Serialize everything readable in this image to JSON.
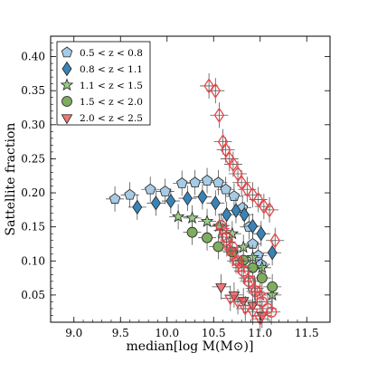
{
  "chart_data": {
    "type": "scatter",
    "xlabel": "median[log M(M⊙)]",
    "ylabel": "Sattellite fraction",
    "xlim": [
      8.75,
      11.75
    ],
    "ylim": [
      0.01,
      0.43
    ],
    "x_ticks": [
      "9.0",
      "9.5",
      "10.0",
      "10.5",
      "11.0",
      "11.5"
    ],
    "y_ticks": [
      "0.05",
      "0.10",
      "0.15",
      "0.20",
      "0.25",
      "0.30",
      "0.35",
      "0.40"
    ],
    "legend_position": "top-left",
    "series": [
      {
        "name": "0.5 < z < 0.8",
        "marker": "pentagon",
        "color": "#a6cbe6",
        "x": [
          9.44,
          9.6,
          9.82,
          9.98,
          10.16,
          10.3,
          10.43,
          10.55,
          10.63,
          10.72,
          10.81,
          10.88,
          10.92,
          10.98,
          11.01
        ],
        "y": [
          0.191,
          0.197,
          0.205,
          0.202,
          0.214,
          0.215,
          0.218,
          0.215,
          0.205,
          0.195,
          0.178,
          0.15,
          0.125,
          0.108,
          0.095
        ]
      },
      {
        "name": "0.8 < z < 1.1",
        "marker": "diamond",
        "color": "#3a83b6",
        "x": [
          9.68,
          9.88,
          10.04,
          10.22,
          10.38,
          10.52,
          10.64,
          10.74,
          10.83,
          10.92,
          11.01,
          11.13
        ],
        "y": [
          0.179,
          0.185,
          0.188,
          0.192,
          0.194,
          0.185,
          0.168,
          0.174,
          0.168,
          0.151,
          0.14,
          0.112
        ]
      },
      {
        "name": "1.1 < z < 1.5",
        "marker": "star",
        "color": "#9acd87",
        "x": [
          10.12,
          10.27,
          10.43,
          10.56,
          10.7,
          10.82,
          10.92,
          11.02,
          11.13
        ],
        "y": [
          0.165,
          0.163,
          0.158,
          0.151,
          0.14,
          0.12,
          0.105,
          0.09,
          0.05
        ]
      },
      {
        "name": "1.5 < z < 2.0",
        "marker": "circle",
        "color": "#7fac5e",
        "x": [
          10.27,
          10.43,
          10.55,
          10.7,
          10.82,
          10.92,
          11.02,
          11.13
        ],
        "y": [
          0.142,
          0.134,
          0.121,
          0.113,
          0.101,
          0.09,
          0.075,
          0.062
        ]
      },
      {
        "name": "2.0 < z < 2.5",
        "marker": "triangle-down",
        "color": "#f07676",
        "x": [
          10.58,
          10.72,
          10.82,
          10.92,
          11.02
        ],
        "y": [
          0.062,
          0.05,
          0.042,
          0.035,
          0.02
        ]
      },
      {
        "name": "",
        "marker": "diamond-open",
        "color": "#e8474a",
        "x": [
          10.45,
          10.52,
          10.56,
          10.6,
          10.63,
          10.67,
          10.71,
          10.76,
          10.8,
          10.86,
          10.92,
          10.98,
          11.04,
          11.1,
          11.16
        ],
        "y": [
          0.357,
          0.35,
          0.314,
          0.275,
          0.263,
          0.25,
          0.242,
          0.228,
          0.215,
          0.205,
          0.197,
          0.19,
          0.18,
          0.175,
          0.13
        ]
      },
      {
        "name": "",
        "marker": "circle-open",
        "color": "#e8474a",
        "x": [
          10.58,
          10.64,
          10.7,
          10.76,
          10.82,
          10.88,
          10.95,
          11.02,
          11.08,
          11.12
        ],
        "y": [
          0.152,
          0.135,
          0.12,
          0.1,
          0.085,
          0.07,
          0.055,
          0.04,
          0.03,
          0.025
        ]
      },
      {
        "name": "",
        "marker": "star-open",
        "color": "#e8474a",
        "x": [
          10.6,
          10.64,
          10.68,
          10.74,
          10.8,
          10.87,
          10.94,
          11.0
        ],
        "y": [
          0.145,
          0.128,
          0.115,
          0.1,
          0.09,
          0.075,
          0.06,
          0.05
        ]
      },
      {
        "name": "",
        "marker": "triangle-down-open",
        "color": "#e8474a",
        "x": [
          10.68,
          10.76,
          10.84,
          10.92,
          11.0
        ],
        "y": [
          0.045,
          0.04,
          0.03,
          0.025,
          0.015
        ]
      }
    ]
  }
}
